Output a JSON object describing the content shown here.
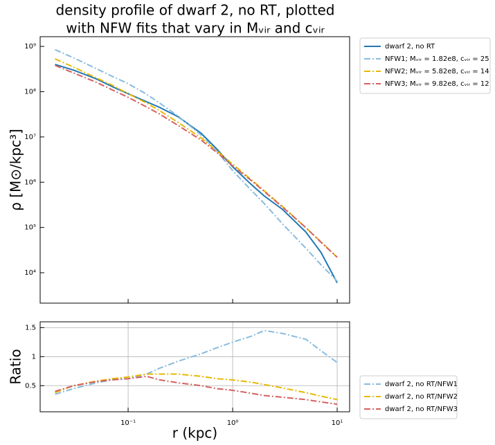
{
  "chart_data": [
    {
      "type": "line",
      "title": [
        "density profile of dwarf 2, no RT, plotted",
        "with NFW fits that vary in Mᵥᵢᵣ and cᵥᵢᵣ"
      ],
      "ylabel": "ρ [M⊙/kpc³]",
      "log_x": true,
      "log_y": true,
      "legend": "upper-right-outside",
      "x": [
        0.02,
        0.03,
        0.05,
        0.07,
        0.1,
        0.15,
        0.2,
        0.3,
        0.5,
        0.7,
        1,
        1.5,
        2,
        3,
        5,
        7,
        10
      ],
      "xlim": [
        0.0144,
        13.15
      ],
      "ylim": [
        2130,
        1640000000
      ],
      "yticks": [
        {
          "value": 10000,
          "label": "10⁴"
        },
        {
          "value": 100000,
          "label": "10⁵"
        },
        {
          "value": 1000000,
          "label": "10⁶"
        },
        {
          "value": 10000000,
          "label": "10⁷"
        },
        {
          "value": 100000000,
          "label": "10⁸"
        },
        {
          "value": 1000000000,
          "label": "10⁹"
        }
      ],
      "series": [
        {
          "name": "dwarf 2, no RT",
          "color": "#1f77b4",
          "dash": "solid",
          "values": [
            400000000,
            300000000,
            190000000,
            130000000,
            90000000,
            60000000,
            45000000,
            28000000,
            12000000,
            5500000,
            2200000,
            900000,
            500000,
            250000,
            80000,
            28000,
            6000
          ]
        },
        {
          "name": "NFW1; Mᵥᵢᵣ = 1.82e8, cᵥᵢᵣ = 25",
          "color": "#88bbdd",
          "dash": "dashdot",
          "values": [
            850000000,
            560000000,
            320000000,
            220000000,
            150000000,
            88000000,
            56000000,
            29000000,
            11000000,
            5000000,
            1800000,
            670000,
            340000,
            120000,
            35000,
            15000,
            6500
          ]
        },
        {
          "name": "NFW2; Mᵥᵢᵣ = 5.82e8, cᵥᵢᵣ = 14",
          "color": "#e6b800",
          "dash": "dashdot",
          "values": [
            530000000,
            350000000,
            200000000,
            140000000,
            90000000,
            56000000,
            38000000,
            21000000,
            9500000,
            5000000,
            2500000,
            1150000,
            650000,
            290000,
            100000,
            48000,
            22000
          ]
        },
        {
          "name": "NFW3; Mᵥᵢᵣ = 9.82e8, cᵥᵢᵣ = 12",
          "color": "#d45f5f",
          "dash": "dashdot",
          "values": [
            380000000,
            260000000,
            160000000,
            110000000,
            75000000,
            46000000,
            32000000,
            18000000,
            8500000,
            4600000,
            2300000,
            1100000,
            630000,
            280000,
            100000,
            47000,
            22000
          ]
        }
      ]
    },
    {
      "type": "line",
      "xlabel": "r (kpc)",
      "ylabel": "Ratio",
      "log_x": true,
      "grid": true,
      "legend": "lower-right-outside",
      "x": [
        0.02,
        0.03,
        0.05,
        0.07,
        0.1,
        0.15,
        0.2,
        0.3,
        0.5,
        0.7,
        1,
        1.5,
        2,
        3,
        5,
        7,
        10
      ],
      "xlim": [
        0.0144,
        13.15
      ],
      "ylim": [
        0.05,
        1.6
      ],
      "xticks": [
        {
          "value": 0.1,
          "label": "10⁻¹"
        },
        {
          "value": 1,
          "label": "10⁰"
        },
        {
          "value": 10,
          "label": "10¹"
        }
      ],
      "yticks": [
        0.5,
        1.0,
        1.5
      ],
      "series": [
        {
          "name": "dwarf 2, no RT/NFW1",
          "color": "#88bbdd",
          "dash": "dashdot",
          "values": [
            0.35,
            0.45,
            0.55,
            0.6,
            0.62,
            0.7,
            0.8,
            0.92,
            1.05,
            1.15,
            1.25,
            1.35,
            1.45,
            1.4,
            1.3,
            1.1,
            0.9
          ]
        },
        {
          "name": "dwarf 2, no RT/NFW2",
          "color": "#e6b800",
          "dash": "dashdot",
          "values": [
            0.38,
            0.5,
            0.58,
            0.62,
            0.65,
            0.7,
            0.7,
            0.7,
            0.66,
            0.62,
            0.6,
            0.56,
            0.52,
            0.46,
            0.38,
            0.32,
            0.26
          ]
        },
        {
          "name": "dwarf 2, no RT/NFW3",
          "color": "#d45f5f",
          "dash": "dashdot",
          "values": [
            0.4,
            0.5,
            0.57,
            0.6,
            0.62,
            0.66,
            0.6,
            0.55,
            0.5,
            0.45,
            0.42,
            0.37,
            0.33,
            0.3,
            0.26,
            0.22,
            0.18
          ]
        }
      ]
    }
  ]
}
